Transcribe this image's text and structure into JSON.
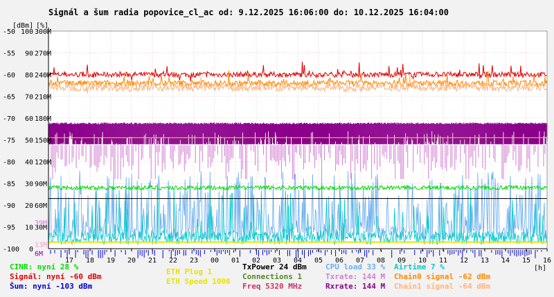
{
  "chart_data": {
    "type": "line",
    "title": "Signál a šum radia popovice_cl_ac od: 9.12.2025 16:06:00 do: 10.12.2025 16:04:00",
    "xlabel": "[h]",
    "ylabel_dbm": "[dBm]",
    "ylabel_pct": "[%]",
    "x_ticks": [
      "17",
      "18",
      "19",
      "20",
      "21",
      "22",
      "23",
      "00",
      "01",
      "02",
      "03",
      "04",
      "05",
      "06",
      "07",
      "08",
      "09",
      "10",
      "11",
      "12",
      "13",
      "14",
      "15",
      "16"
    ],
    "y_axes": {
      "dbm": [
        "-50",
        "-55",
        "-60",
        "-65",
        "-70",
        "-75",
        "-80",
        "-85",
        "-90",
        "-95",
        "-100"
      ],
      "pct": [
        "100",
        "90",
        "80",
        "70",
        "60",
        "50",
        "40",
        "30",
        "20",
        "10",
        "0"
      ],
      "rate": [
        "300M",
        "270M",
        "240M",
        "210M",
        "180M",
        "150M",
        "120M",
        "90M",
        "60M",
        "30M",
        ""
      ]
    },
    "small_labels": [
      {
        "text": "39M",
        "color": "#d27fd2"
      },
      {
        "text": "13M",
        "color": "#ff99cc"
      },
      {
        "text": "6M",
        "color": "#8b008b"
      }
    ],
    "dbm_range": [
      -100,
      -50
    ],
    "grid": true,
    "series": [
      {
        "name": "Signál",
        "color": "#e00000",
        "kind": "dbm",
        "level": -60,
        "noise": 0.6,
        "spikes": 1.5
      },
      {
        "name": "Chain0 signal",
        "color": "#ff8800",
        "kind": "dbm",
        "level": -62,
        "noise": 0.7,
        "spikes": 1.5
      },
      {
        "name": "Chain1 signal",
        "color": "#ffb380",
        "kind": "dbm",
        "level": -63,
        "noise": 0.8,
        "spikes": 1.2
      },
      {
        "name": "Rxrate",
        "color": "#8b008b",
        "kind": "band",
        "low": -76,
        "high": -71
      },
      {
        "name": "Txrate",
        "color": "#d27fd2",
        "kind": "dips",
        "level": -76,
        "depth": -84
      },
      {
        "name": "CPU load",
        "color": "#6aafef",
        "kind": "spiky",
        "base": -98,
        "top": -82
      },
      {
        "name": "Airtime",
        "color": "#00cccc",
        "kind": "spiky2",
        "base": -99,
        "top": -86
      },
      {
        "name": "CINR",
        "color": "#00dd00",
        "kind": "dbm",
        "level": -86,
        "noise": 0.5,
        "spikes": 0
      },
      {
        "name": "ETH Speed",
        "color": "#e5e500",
        "kind": "flat",
        "level": -98.5
      },
      {
        "name": "Šum",
        "color": "#0000cc",
        "kind": "bottom",
        "level": -103
      }
    ],
    "hlines": [
      {
        "level": -88.5,
        "color": "#000000"
      },
      {
        "level": -74.5,
        "color": "#e5e500"
      }
    ]
  },
  "legend": {
    "col1": [
      {
        "text": "CINR: nyní 28 %",
        "color": "#00dd00"
      },
      {
        "text": "Signál: nyní -60 dBm",
        "color": "#e00000"
      },
      {
        "text": "Šum: nyní -103 dBm",
        "color": "#0000cc"
      }
    ],
    "col2": [
      {
        "text": "ETH Plug 1",
        "color": "#e5e500"
      },
      {
        "text": "ETH Speed 1000",
        "color": "#e5e500"
      }
    ],
    "col3": [
      {
        "text": "TxPower 24 dBm",
        "color": "#000000"
      },
      {
        "text": "Connections 1",
        "color": "#558822"
      },
      {
        "text": "Freq 5320 MHz",
        "color": "#cc3366"
      }
    ],
    "col4": [
      {
        "text": "CPU load 33 %",
        "color": "#6aafef"
      },
      {
        "text": "Txrate: 144 M",
        "color": "#d27fd2"
      },
      {
        "text": "Rxrate: 144 M",
        "color": "#8b008b"
      }
    ],
    "col5": [
      {
        "text": "Airtime 7 %",
        "color": "#00cccc"
      },
      {
        "text": "Chain0 signal -62 dBm",
        "color": "#ff8800"
      },
      {
        "text": "Chain1 signal -64 dBm",
        "color": "#ffb380"
      }
    ]
  }
}
